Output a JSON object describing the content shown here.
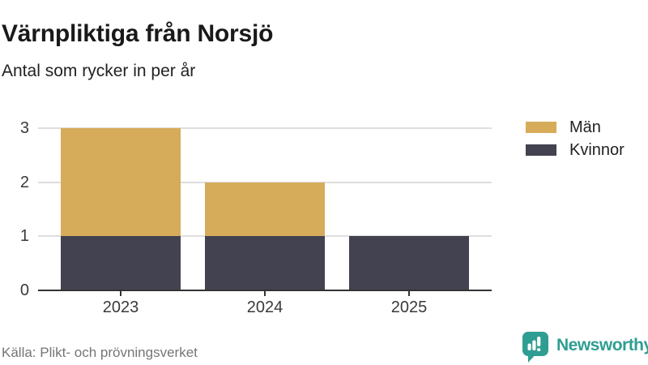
{
  "chart_data": {
    "type": "bar",
    "stacked": true,
    "title": "Värnpliktiga från Norsjö",
    "subtitle": "Antal som rycker in per år",
    "categories": [
      "2023",
      "2024",
      "2025"
    ],
    "series": [
      {
        "name": "Män",
        "color": "#d6ac5b",
        "values": [
          2,
          1,
          0
        ]
      },
      {
        "name": "Kvinnor",
        "color": "#434250",
        "values": [
          1,
          1,
          1
        ]
      }
    ],
    "stack_order": [
      "Kvinnor",
      "Män"
    ],
    "ylim": [
      0,
      3
    ],
    "yticks": [
      0,
      1,
      2,
      3
    ],
    "grid": true,
    "legend_position": "top-right-outside",
    "xlabel": "",
    "ylabel": ""
  },
  "footer": {
    "source": "Källa: Plikt- och prövningsverket",
    "brand": "Newsworthy"
  },
  "colors": {
    "men": "#d6ac5b",
    "women": "#434250",
    "gridline": "#dedede",
    "axis": "#333333",
    "tick_label": "#3a3a3a",
    "brand": "#2f9e92",
    "source_text": "#757575",
    "background": "#ffffff"
  }
}
